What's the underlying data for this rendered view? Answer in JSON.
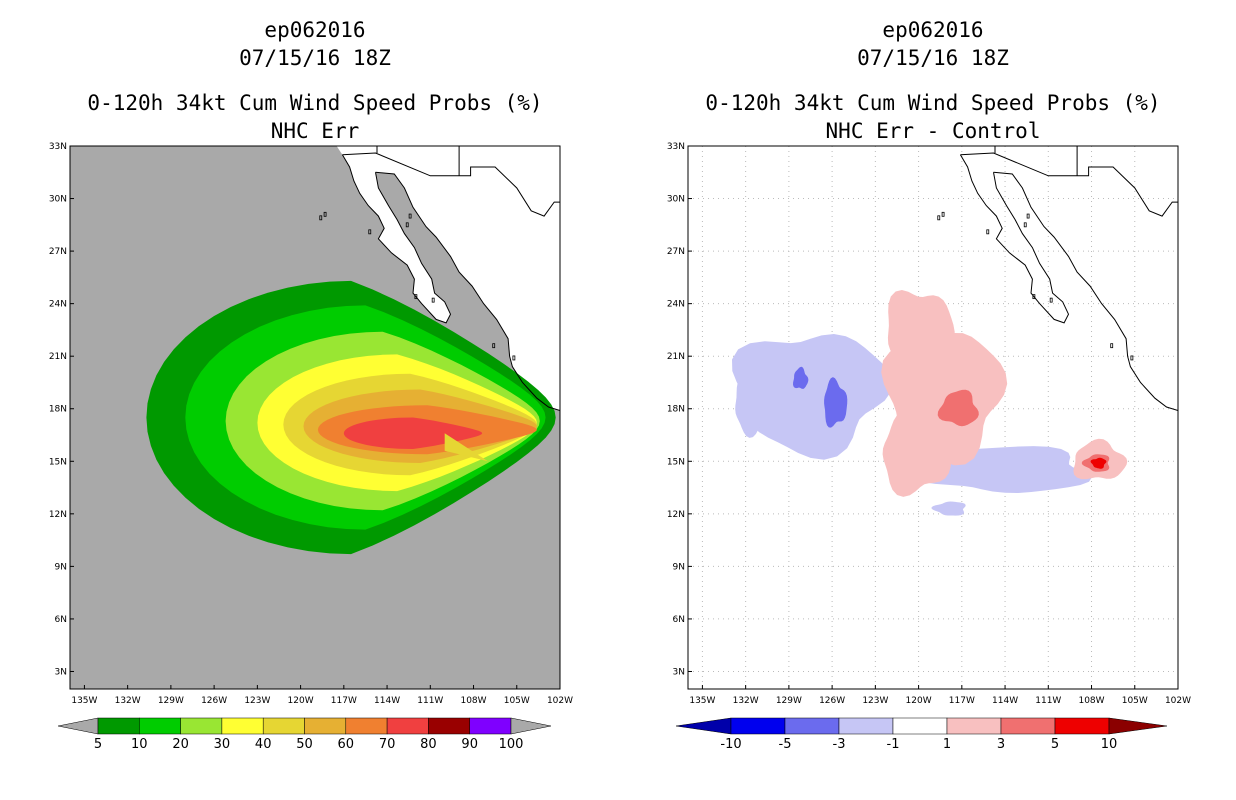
{
  "left_panel": {
    "storm_id": "ep062016",
    "datetime": "07/15/16 18Z",
    "title": "0-120h 34kt Cum Wind Speed Probs (%)",
    "subtitle": "NHC Err",
    "colors": {
      "ocean": "#a9a9a9",
      "land": "#ffffff",
      "bins": [
        "#009900",
        "#00cc00",
        "#99e633",
        "#ffff33",
        "#e6d633",
        "#e6b033",
        "#f08030",
        "#f04040",
        "#990000",
        "#7f00ff"
      ],
      "under": "#a9a9a9",
      "over": "#a9a9a9"
    },
    "colorbar_labels": [
      "5",
      "10",
      "20",
      "30",
      "40",
      "50",
      "60",
      "70",
      "80",
      "90",
      "100"
    ]
  },
  "right_panel": {
    "storm_id": "ep062016",
    "datetime": "07/15/16 18Z",
    "title": "0-120h 34kt Cum Wind Speed Probs (%)",
    "subtitle": "NHC Err - Control",
    "colors": {
      "under": "#0000aa",
      "over": "#8b0000",
      "bins": [
        "#0000ee",
        "#6b6bee",
        "#c6c6f5",
        "#ffffff",
        "#f8c0c0",
        "#f07070",
        "#ee0000"
      ]
    },
    "colorbar_labels": [
      "-10",
      "-5",
      "-3",
      "-1",
      "1",
      "3",
      "5",
      "10"
    ]
  },
  "axes": {
    "lat_labels": [
      "33N",
      "30N",
      "27N",
      "24N",
      "21N",
      "18N",
      "15N",
      "12N",
      "9N",
      "6N",
      "3N"
    ],
    "lon_labels": [
      "135W",
      "132W",
      "129W",
      "126W",
      "123W",
      "120W",
      "117W",
      "114W",
      "111W",
      "108W",
      "105W",
      "102W"
    ]
  },
  "chart_data": [
    {
      "type": "heatmap",
      "title": "0-120h 34kt Cum Wind Speed Probs (%)",
      "subtitle": "NHC Err",
      "legend_bins": [
        5,
        10,
        20,
        30,
        40,
        50,
        60,
        70,
        80,
        90,
        100
      ],
      "xlim": [
        -136,
        -102
      ],
      "ylim": [
        2,
        33
      ],
      "contours": [
        {
          "min": 5,
          "center": [
            -116.5,
            17.5
          ],
          "rx": 14.2,
          "ry": 7.8
        },
        {
          "min": 10,
          "center": [
            -115.5,
            17.5
          ],
          "rx": 12.5,
          "ry": 6.4
        },
        {
          "min": 20,
          "center": [
            -114.3,
            17.3
          ],
          "rx": 10.9,
          "ry": 5.1
        },
        {
          "min": 30,
          "center": [
            -113.3,
            17.2
          ],
          "rx": 9.7,
          "ry": 3.9
        },
        {
          "min": 40,
          "center": [
            -112.4,
            17.1
          ],
          "rx": 8.8,
          "ry": 2.9
        },
        {
          "min": 50,
          "center": [
            -111.7,
            17.0
          ],
          "rx": 8.1,
          "ry": 2.1
        },
        {
          "min": 60,
          "center": [
            -111.2,
            16.8
          ],
          "rx": 7.6,
          "ry": 1.4
        },
        {
          "min": 70,
          "center": [
            -112.2,
            16.6
          ],
          "rx": 4.8,
          "ry": 0.9
        }
      ],
      "tip": [
        -107.0,
        15.0
      ]
    },
    {
      "type": "heatmap",
      "title": "0-120h 34kt Cum Wind Speed Probs (%)",
      "subtitle": "NHC Err - Control",
      "legend_bins": [
        -10,
        -5,
        -3,
        -1,
        1,
        3,
        5,
        10
      ],
      "xlim": [
        -136,
        -102
      ],
      "ylim": [
        2,
        33
      ],
      "regions": [
        {
          "class": "-3",
          "center": [
            -127.5,
            19.0
          ],
          "rx": 5.2,
          "ry": 3.4
        },
        {
          "class": "-3",
          "center": [
            -131.5,
            18.2
          ],
          "rx": 1.3,
          "ry": 1.6
        },
        {
          "class": "-5",
          "center": [
            -125.8,
            18.3
          ],
          "rx": 0.8,
          "ry": 1.3
        },
        {
          "class": "-5",
          "center": [
            -128.2,
            19.7
          ],
          "rx": 0.5,
          "ry": 0.6
        },
        {
          "class": "-3",
          "center": [
            -114.0,
            14.5
          ],
          "rx": 5.8,
          "ry": 1.3
        },
        {
          "class": "-3",
          "center": [
            -117.8,
            12.3
          ],
          "rx": 1.1,
          "ry": 0.4
        },
        {
          "class": "3",
          "center": [
            -118.2,
            18.8
          ],
          "rx": 4.0,
          "ry": 3.6
        },
        {
          "class": "3",
          "center": [
            -120.0,
            22.4
          ],
          "rx": 2.3,
          "ry": 2.4
        },
        {
          "class": "3",
          "center": [
            -120.2,
            15.4
          ],
          "rx": 2.4,
          "ry": 2.2
        },
        {
          "class": "3",
          "center": [
            -107.5,
            15.0
          ],
          "rx": 1.8,
          "ry": 1.1
        },
        {
          "class": "5",
          "center": [
            -117.2,
            18.0
          ],
          "rx": 1.3,
          "ry": 1.0
        },
        {
          "class": "5",
          "center": [
            -107.6,
            14.9
          ],
          "rx": 0.9,
          "ry": 0.5
        },
        {
          "class": "10",
          "center": [
            -107.5,
            14.9
          ],
          "rx": 0.5,
          "ry": 0.3
        }
      ]
    }
  ]
}
